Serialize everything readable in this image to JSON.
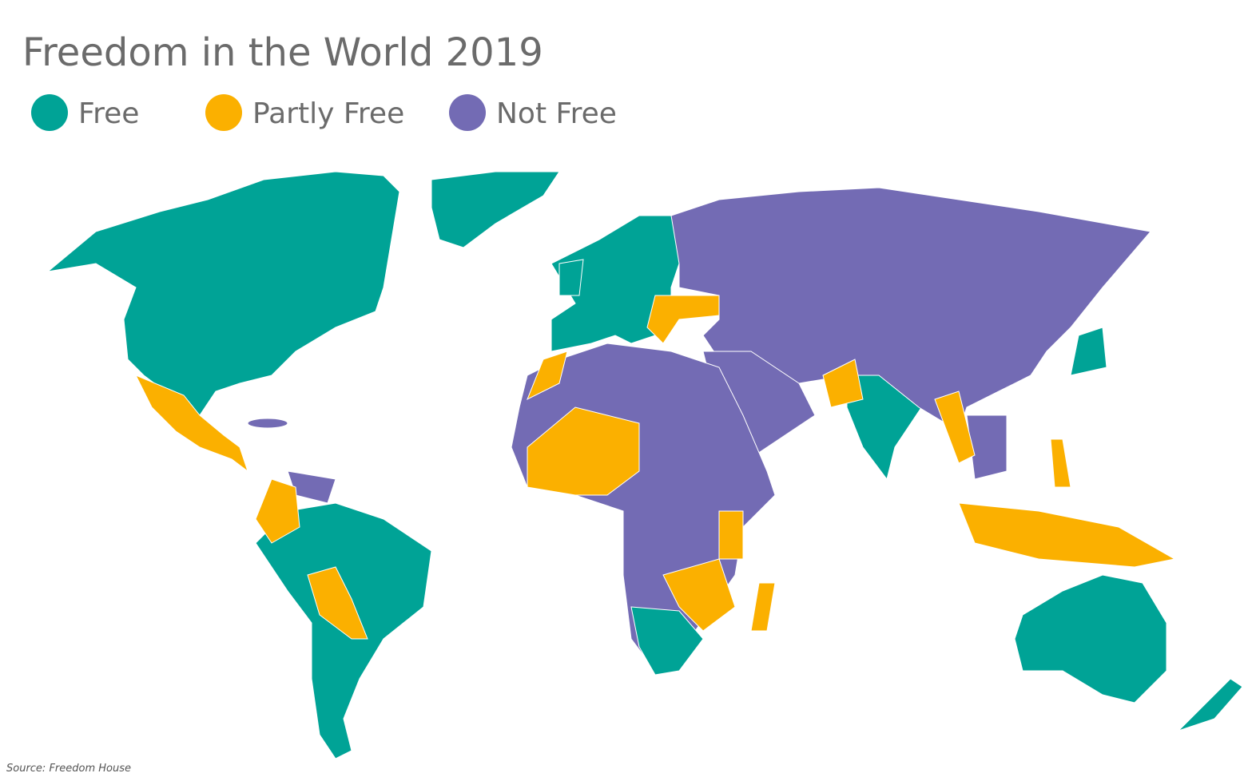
{
  "title": "Freedom in the World 2019",
  "legend": [
    {
      "name": "Free",
      "color": "#00a396"
    },
    {
      "name": "Partly Free",
      "color": "#fbb000"
    },
    {
      "name": "Not Free",
      "color": "#736bb4"
    }
  ],
  "source": "Source: Freedom House"
}
